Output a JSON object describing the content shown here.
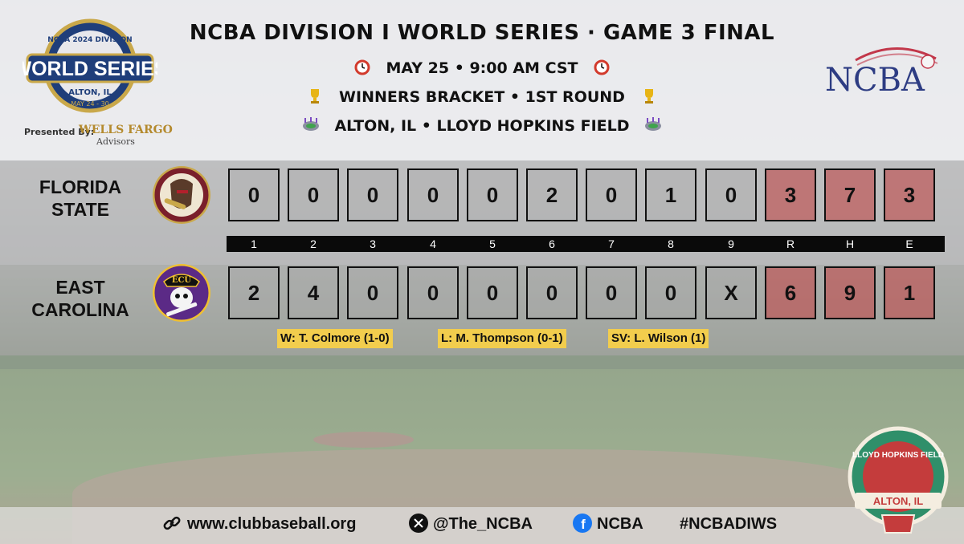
{
  "header": {
    "title": "NCBA DIVISION I WORLD SERIES  · GAME 3 FINAL",
    "datetime": "MAY 25 • 9:00 AM CST",
    "bracket": "WINNERS BRACKET • 1ST ROUND",
    "venue": "ALTON, IL • LLOYD HOPKINS FIELD"
  },
  "event_logo": {
    "banner": "WORLD SERIES",
    "top_text": "NCBA 2024 DIVISION",
    "location": "ALTON, IL",
    "dates": "MAY 24 - 30",
    "presented_by": "Presented By:",
    "sponsor": "WELLS FARGO",
    "sponsor_sub": "Advisors"
  },
  "org_logo": {
    "text": "NCBA"
  },
  "column_labels": [
    "1",
    "2",
    "3",
    "4",
    "5",
    "6",
    "7",
    "8",
    "9",
    "R",
    "H",
    "E"
  ],
  "teams": [
    {
      "name_line1": "FLORIDA",
      "name_line2": "STATE",
      "scores": [
        "0",
        "0",
        "0",
        "0",
        "0",
        "2",
        "0",
        "1",
        "0",
        "3",
        "7",
        "3"
      ],
      "logo_color": "#7a1f2b",
      "logo_name": "seminole-head-logo"
    },
    {
      "name_line1": "EAST",
      "name_line2": "CAROLINA",
      "scores": [
        "2",
        "4",
        "0",
        "0",
        "0",
        "0",
        "0",
        "0",
        "X",
        "6",
        "9",
        "1"
      ],
      "logo_color": "#5b2a86",
      "logo_name": "pirate-skull-logo",
      "logo_text": "ECU"
    }
  ],
  "pitchers": {
    "win": "W:  T. Colmore (1-0)",
    "loss": "L:  M. Thompson (0-1)",
    "save": "SV:  L. Wilson (1)"
  },
  "footer": {
    "website": "www.clubbaseball.org",
    "twitter": "@The_NCBA",
    "facebook": "NCBA",
    "hashtag": "#NCBADIWS"
  },
  "field_badge": {
    "top_text": "LLOYD HOPKINS FIELD",
    "bottom_text": "ALTON, IL"
  },
  "colors": {
    "highlight": "#c05050",
    "pitcher_bg": "#f2cd4d",
    "label_bar": "#0a0a0a"
  }
}
